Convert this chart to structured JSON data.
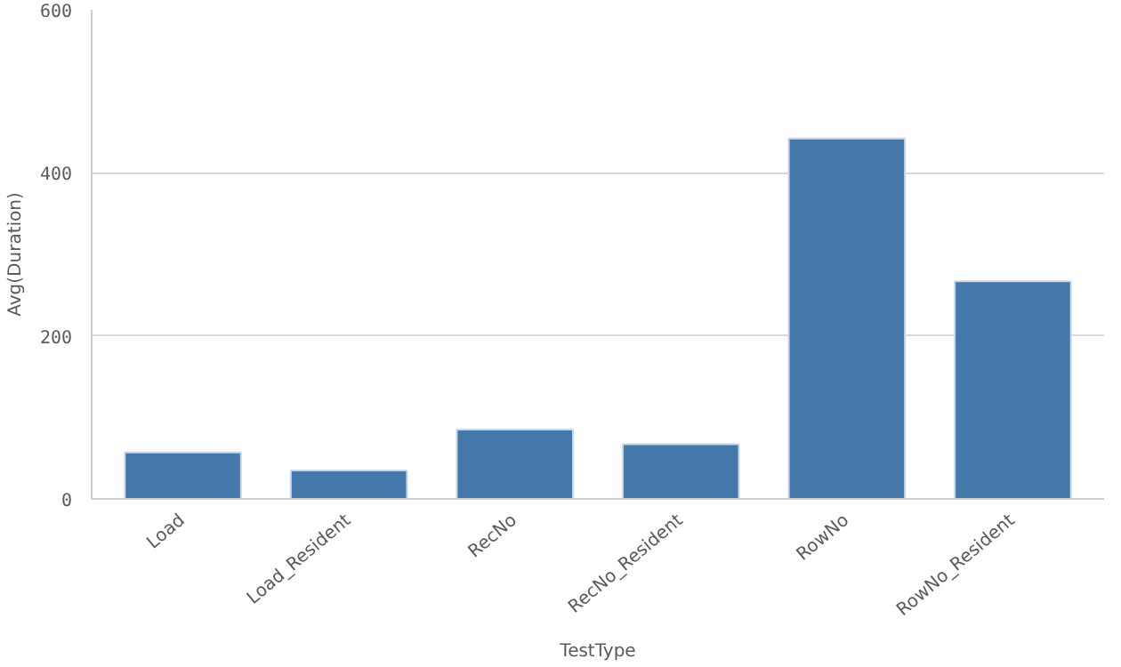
{
  "chart_data": {
    "type": "bar",
    "xlabel": "TestType",
    "ylabel": "Avg(Duration)",
    "categories": [
      "Load",
      "Load_Resident",
      "RecNo",
      "RecNo_Resident",
      "RowNo",
      "RowNo_Resident"
    ],
    "values": [
      57,
      35,
      85,
      67,
      442,
      267
    ],
    "color": "#4477aa",
    "ylim": [
      0,
      600
    ],
    "yticks": [
      0,
      200,
      400,
      600
    ],
    "grid": "y"
  }
}
